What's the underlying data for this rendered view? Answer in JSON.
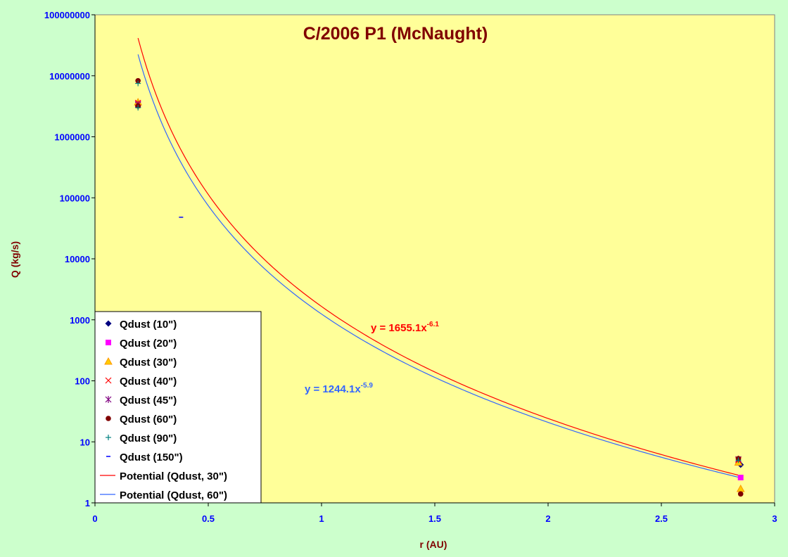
{
  "chart_data": {
    "type": "scatter",
    "title": "C/2006 P1 (McNaught)",
    "xlabel": "r (AU)",
    "ylabel": "Q (kg/s)",
    "xlim": [
      0,
      3
    ],
    "ylim": [
      1,
      100000000
    ],
    "yscale": "log",
    "x_ticks": [
      "0",
      "0.5",
      "1",
      "1.5",
      "2",
      "2.5",
      "3"
    ],
    "y_ticks": [
      "1",
      "10",
      "100",
      "1000",
      "10000",
      "100000",
      "1000000",
      "10000000",
      "100000000"
    ],
    "grid": false,
    "legend_position": "bottom-left",
    "colors": {
      "plot_background": "#ffff99",
      "outer_background": "#ccffcc",
      "tick_labels": "#0000ff",
      "titles": "#800000"
    },
    "series": [
      {
        "name": "Qdust (10\")",
        "marker": "diamond",
        "color": "#000080",
        "points": [
          [
            0.19,
            3300000
          ],
          [
            2.85,
            4.2
          ]
        ]
      },
      {
        "name": "Qdust (20\")",
        "marker": "square",
        "color": "#ff00ff",
        "points": [
          [
            0.19,
            3500000
          ],
          [
            2.85,
            2.6
          ]
        ]
      },
      {
        "name": "Qdust (30\")",
        "marker": "triangle",
        "color": "#ff9900",
        "points": [
          [
            0.19,
            3700000
          ],
          [
            2.84,
            4.6
          ],
          [
            2.85,
            1.7
          ]
        ]
      },
      {
        "name": "Qdust (40\")",
        "marker": "x",
        "color": "#ff0000",
        "points": [
          [
            0.19,
            3600000
          ],
          [
            2.84,
            5.0
          ]
        ]
      },
      {
        "name": "Qdust (45\")",
        "marker": "star",
        "color": "#800080",
        "points": [
          [
            0.19,
            3400000
          ],
          [
            2.84,
            5.2
          ]
        ]
      },
      {
        "name": "Qdust (60\")",
        "marker": "circle",
        "color": "#800000",
        "points": [
          [
            0.19,
            8300000
          ],
          [
            0.19,
            3200000
          ],
          [
            2.84,
            5.3
          ],
          [
            2.85,
            1.4
          ]
        ]
      },
      {
        "name": "Qdust (90\")",
        "marker": "plus",
        "color": "#008080",
        "points": [
          [
            0.19,
            7500000
          ],
          [
            0.19,
            3000000
          ],
          [
            2.84,
            5.0
          ]
        ]
      },
      {
        "name": "Qdust (150\")",
        "marker": "dash",
        "color": "#0000ff",
        "points": [
          [
            0.38,
            48000
          ]
        ]
      }
    ],
    "trendlines": [
      {
        "name": "Potential (Qdust, 30\")",
        "color": "#ff0000",
        "coef": 1655.1,
        "exponent": -6.1,
        "x_range": [
          0.19,
          2.85
        ],
        "equation": "y = 1655.1x",
        "equation_exponent": "-6.1"
      },
      {
        "name": "Potential (Qdust, 60\")",
        "color": "#3366ff",
        "coef": 1244.1,
        "exponent": -5.9,
        "x_range": [
          0.19,
          2.85
        ],
        "equation": "y = 1244.1x",
        "equation_exponent": "-5.9"
      }
    ]
  }
}
